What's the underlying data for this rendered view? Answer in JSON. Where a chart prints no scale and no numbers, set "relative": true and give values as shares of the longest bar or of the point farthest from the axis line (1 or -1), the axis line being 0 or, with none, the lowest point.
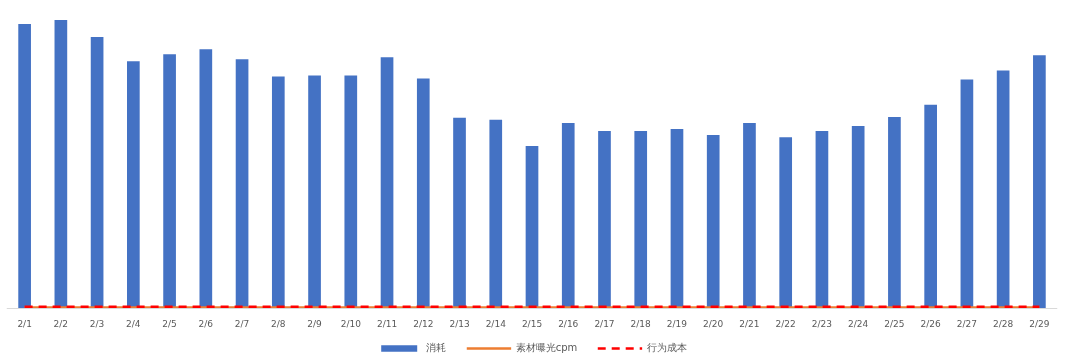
{
  "chart_data": {
    "type": "bar",
    "relative": true,
    "categories": [
      "2/1",
      "2/2",
      "2/3",
      "2/4",
      "2/5",
      "2/6",
      "2/7",
      "2/8",
      "2/9",
      "2/10",
      "2/11",
      "2/12",
      "2/13",
      "2/14",
      "2/15",
      "2/16",
      "2/17",
      "2/18",
      "2/19",
      "2/20",
      "2/21",
      "2/22",
      "2/23",
      "2/24",
      "2/25",
      "2/26",
      "2/27",
      "2/28",
      "2/29"
    ],
    "series": [
      {
        "name": "消耗",
        "color": "#4472c4",
        "values": [
          0.986,
          1,
          0.941,
          0.857,
          0.881,
          0.899,
          0.864,
          0.804,
          0.808,
          0.808,
          0.871,
          0.797,
          0.661,
          0.654,
          0.563,
          0.643,
          0.615,
          0.615,
          0.622,
          0.601,
          0.643,
          0.594,
          0.615,
          0.633,
          0.664,
          0.706,
          0.794,
          0.825,
          0.878
        ]
      },
      {
        "name": "素材曝光cpm",
        "type": "line",
        "color": "#ed7d31",
        "line_style": "solid",
        "values": [
          0.003,
          0.003,
          0.003,
          0.003,
          0.003,
          0.003,
          0.003,
          0.003,
          0.003,
          0.003,
          0.003,
          0.003,
          0.003,
          0.003,
          0.003,
          0.003,
          0.003,
          0.003,
          0.003,
          0.003,
          0.003,
          0.003,
          0.003,
          0.003,
          0.003,
          0.003,
          0.003,
          0.003,
          0.003
        ]
      },
      {
        "name": "行为成本",
        "type": "line",
        "color": "#ff0000",
        "line_style": "dashed",
        "values": [
          0.006,
          0.006,
          0.006,
          0.006,
          0.006,
          0.006,
          0.006,
          0.006,
          0.006,
          0.006,
          0.006,
          0.006,
          0.006,
          0.006,
          0.006,
          0.006,
          0.006,
          0.006,
          0.006,
          0.006,
          0.006,
          0.006,
          0.006,
          0.006,
          0.006,
          0.006,
          0.006,
          0.006,
          0.006
        ]
      }
    ],
    "legend": "bottom",
    "grid": false
  }
}
